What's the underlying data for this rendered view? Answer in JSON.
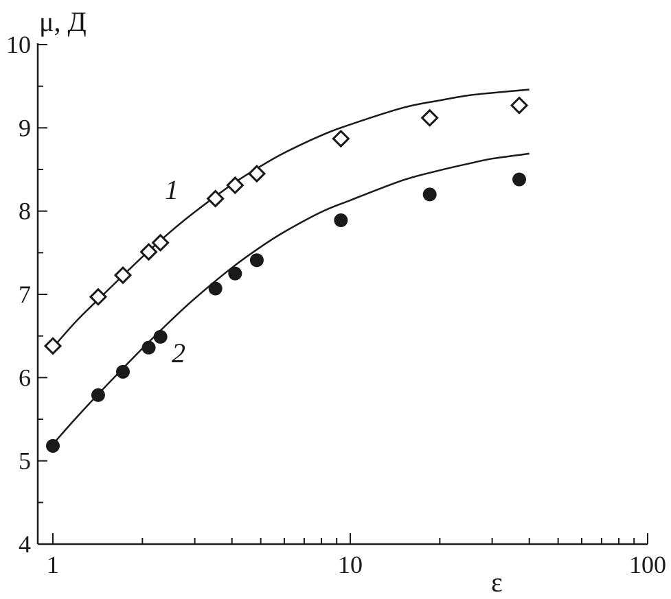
{
  "chart_data": {
    "type": "scatter",
    "xlabel": "ε",
    "ylabel": "μ, Д",
    "x_scale": "log",
    "xlim": [
      1,
      100
    ],
    "ylim": [
      4,
      10
    ],
    "x_ticks": [
      1,
      10,
      100
    ],
    "x_tick_labels": [
      "1",
      "10",
      "100"
    ],
    "y_ticks": [
      4,
      5,
      6,
      7,
      8,
      9,
      10
    ],
    "y_tick_labels": [
      "4",
      "5",
      "6",
      "7",
      "8",
      "9",
      "10"
    ],
    "grid": false,
    "series": [
      {
        "name": "1",
        "marker": "open-diamond",
        "x": [
          1.0,
          1.42,
          1.72,
          2.1,
          2.3,
          3.52,
          4.1,
          4.85,
          9.3,
          18.5,
          37.0
        ],
        "y": [
          6.38,
          6.97,
          7.23,
          7.51,
          7.62,
          8.15,
          8.31,
          8.45,
          8.87,
          9.12,
          9.27
        ],
        "fit_curve": {
          "x": [
            1.0,
            1.2,
            1.5,
            2.0,
            2.5,
            3.0,
            4.0,
            5.0,
            6.0,
            8.0,
            10.0,
            15.0,
            20.0,
            25.0,
            30.0,
            40.0
          ],
          "y": [
            6.36,
            6.68,
            7.02,
            7.45,
            7.76,
            7.99,
            8.32,
            8.54,
            8.7,
            8.91,
            9.04,
            9.24,
            9.33,
            9.39,
            9.42,
            9.46
          ]
        }
      },
      {
        "name": "2",
        "marker": "filled-circle",
        "x": [
          1.0,
          1.42,
          1.72,
          2.1,
          2.3,
          3.52,
          4.1,
          4.85,
          9.3,
          18.5,
          37.0
        ],
        "y": [
          5.18,
          5.79,
          6.07,
          6.36,
          6.49,
          7.07,
          7.25,
          7.41,
          7.89,
          8.2,
          8.38
        ],
        "fit_curve": {
          "x": [
            1.0,
            1.2,
            1.5,
            2.0,
            2.5,
            3.0,
            4.0,
            5.0,
            6.0,
            8.0,
            10.0,
            15.0,
            20.0,
            25.0,
            30.0,
            40.0
          ],
          "y": [
            5.2,
            5.52,
            5.89,
            6.35,
            6.69,
            6.95,
            7.32,
            7.57,
            7.75,
            7.99,
            8.13,
            8.37,
            8.49,
            8.57,
            8.63,
            8.69
          ]
        }
      }
    ]
  }
}
